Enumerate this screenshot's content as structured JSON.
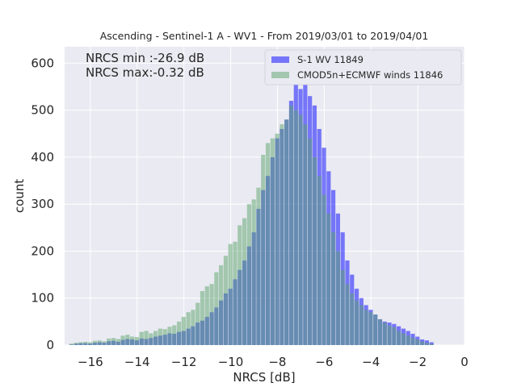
{
  "chart_data": {
    "type": "bar",
    "title": "Ascending - Sentinel-1 A - WV1 - From 2019/03/01 to 2019/04/01",
    "xlabel": "NRCS [dB]",
    "ylabel": "count",
    "xlim": [
      -17.1,
      0
    ],
    "ylim": [
      0,
      635
    ],
    "grid": true,
    "x_ticks": [
      -16,
      -14,
      -12,
      -10,
      -8,
      -6,
      -4,
      -2,
      0
    ],
    "y_ticks": [
      0,
      100,
      200,
      300,
      400,
      500,
      600
    ],
    "x_tick_labels": [
      "−16",
      "−14",
      "−12",
      "−10",
      "−8",
      "−6",
      "−4",
      "−2",
      "0"
    ],
    "y_tick_labels": [
      "0",
      "100",
      "200",
      "300",
      "400",
      "500",
      "600"
    ],
    "annotations": [
      "NRCS min :-26.9 dB",
      "NRCS max:-0.32 dB"
    ],
    "legend_position": "top-right",
    "bin_start": -17.1,
    "bin_width": 0.2,
    "series": [
      {
        "name": "S-1 WV 11849",
        "color": "#0000ff",
        "values": [
          0,
          1,
          3,
          4,
          4,
          3,
          5,
          6,
          5,
          8,
          9,
          7,
          11,
          13,
          12,
          10,
          14,
          13,
          15,
          18,
          20,
          22,
          25,
          24,
          28,
          30,
          35,
          40,
          48,
          52,
          60,
          70,
          80,
          95,
          110,
          120,
          140,
          160,
          180,
          210,
          240,
          290,
          330,
          360,
          400,
          440,
          460,
          480,
          520,
          560,
          545,
          600,
          530,
          510,
          460,
          420,
          370,
          330,
          280,
          240,
          180,
          150,
          120,
          100,
          85,
          75,
          65,
          55,
          50,
          48,
          45,
          40,
          35,
          30,
          24,
          18,
          12,
          10,
          6,
          0,
          0,
          0,
          0,
          0,
          0,
          0
        ]
      },
      {
        "name": "CMOD5n+ECMWF winds 11846",
        "color": "#5aa469",
        "values": [
          0,
          3,
          5,
          6,
          7,
          6,
          9,
          10,
          8,
          14,
          15,
          13,
          20,
          22,
          18,
          17,
          28,
          30,
          25,
          30,
          35,
          34,
          39,
          42,
          50,
          60,
          70,
          75,
          90,
          115,
          125,
          130,
          155,
          170,
          190,
          215,
          220,
          255,
          270,
          300,
          310,
          335,
          405,
          430,
          440,
          450,
          470,
          480,
          510,
          500,
          490,
          470,
          440,
          400,
          360,
          320,
          280,
          240,
          200,
          160,
          130,
          110,
          95,
          85,
          75,
          70,
          65,
          55,
          48,
          42,
          38,
          30,
          25,
          20,
          16,
          12,
          8,
          5,
          3,
          0,
          0,
          0,
          0,
          0,
          0,
          0
        ]
      }
    ]
  }
}
